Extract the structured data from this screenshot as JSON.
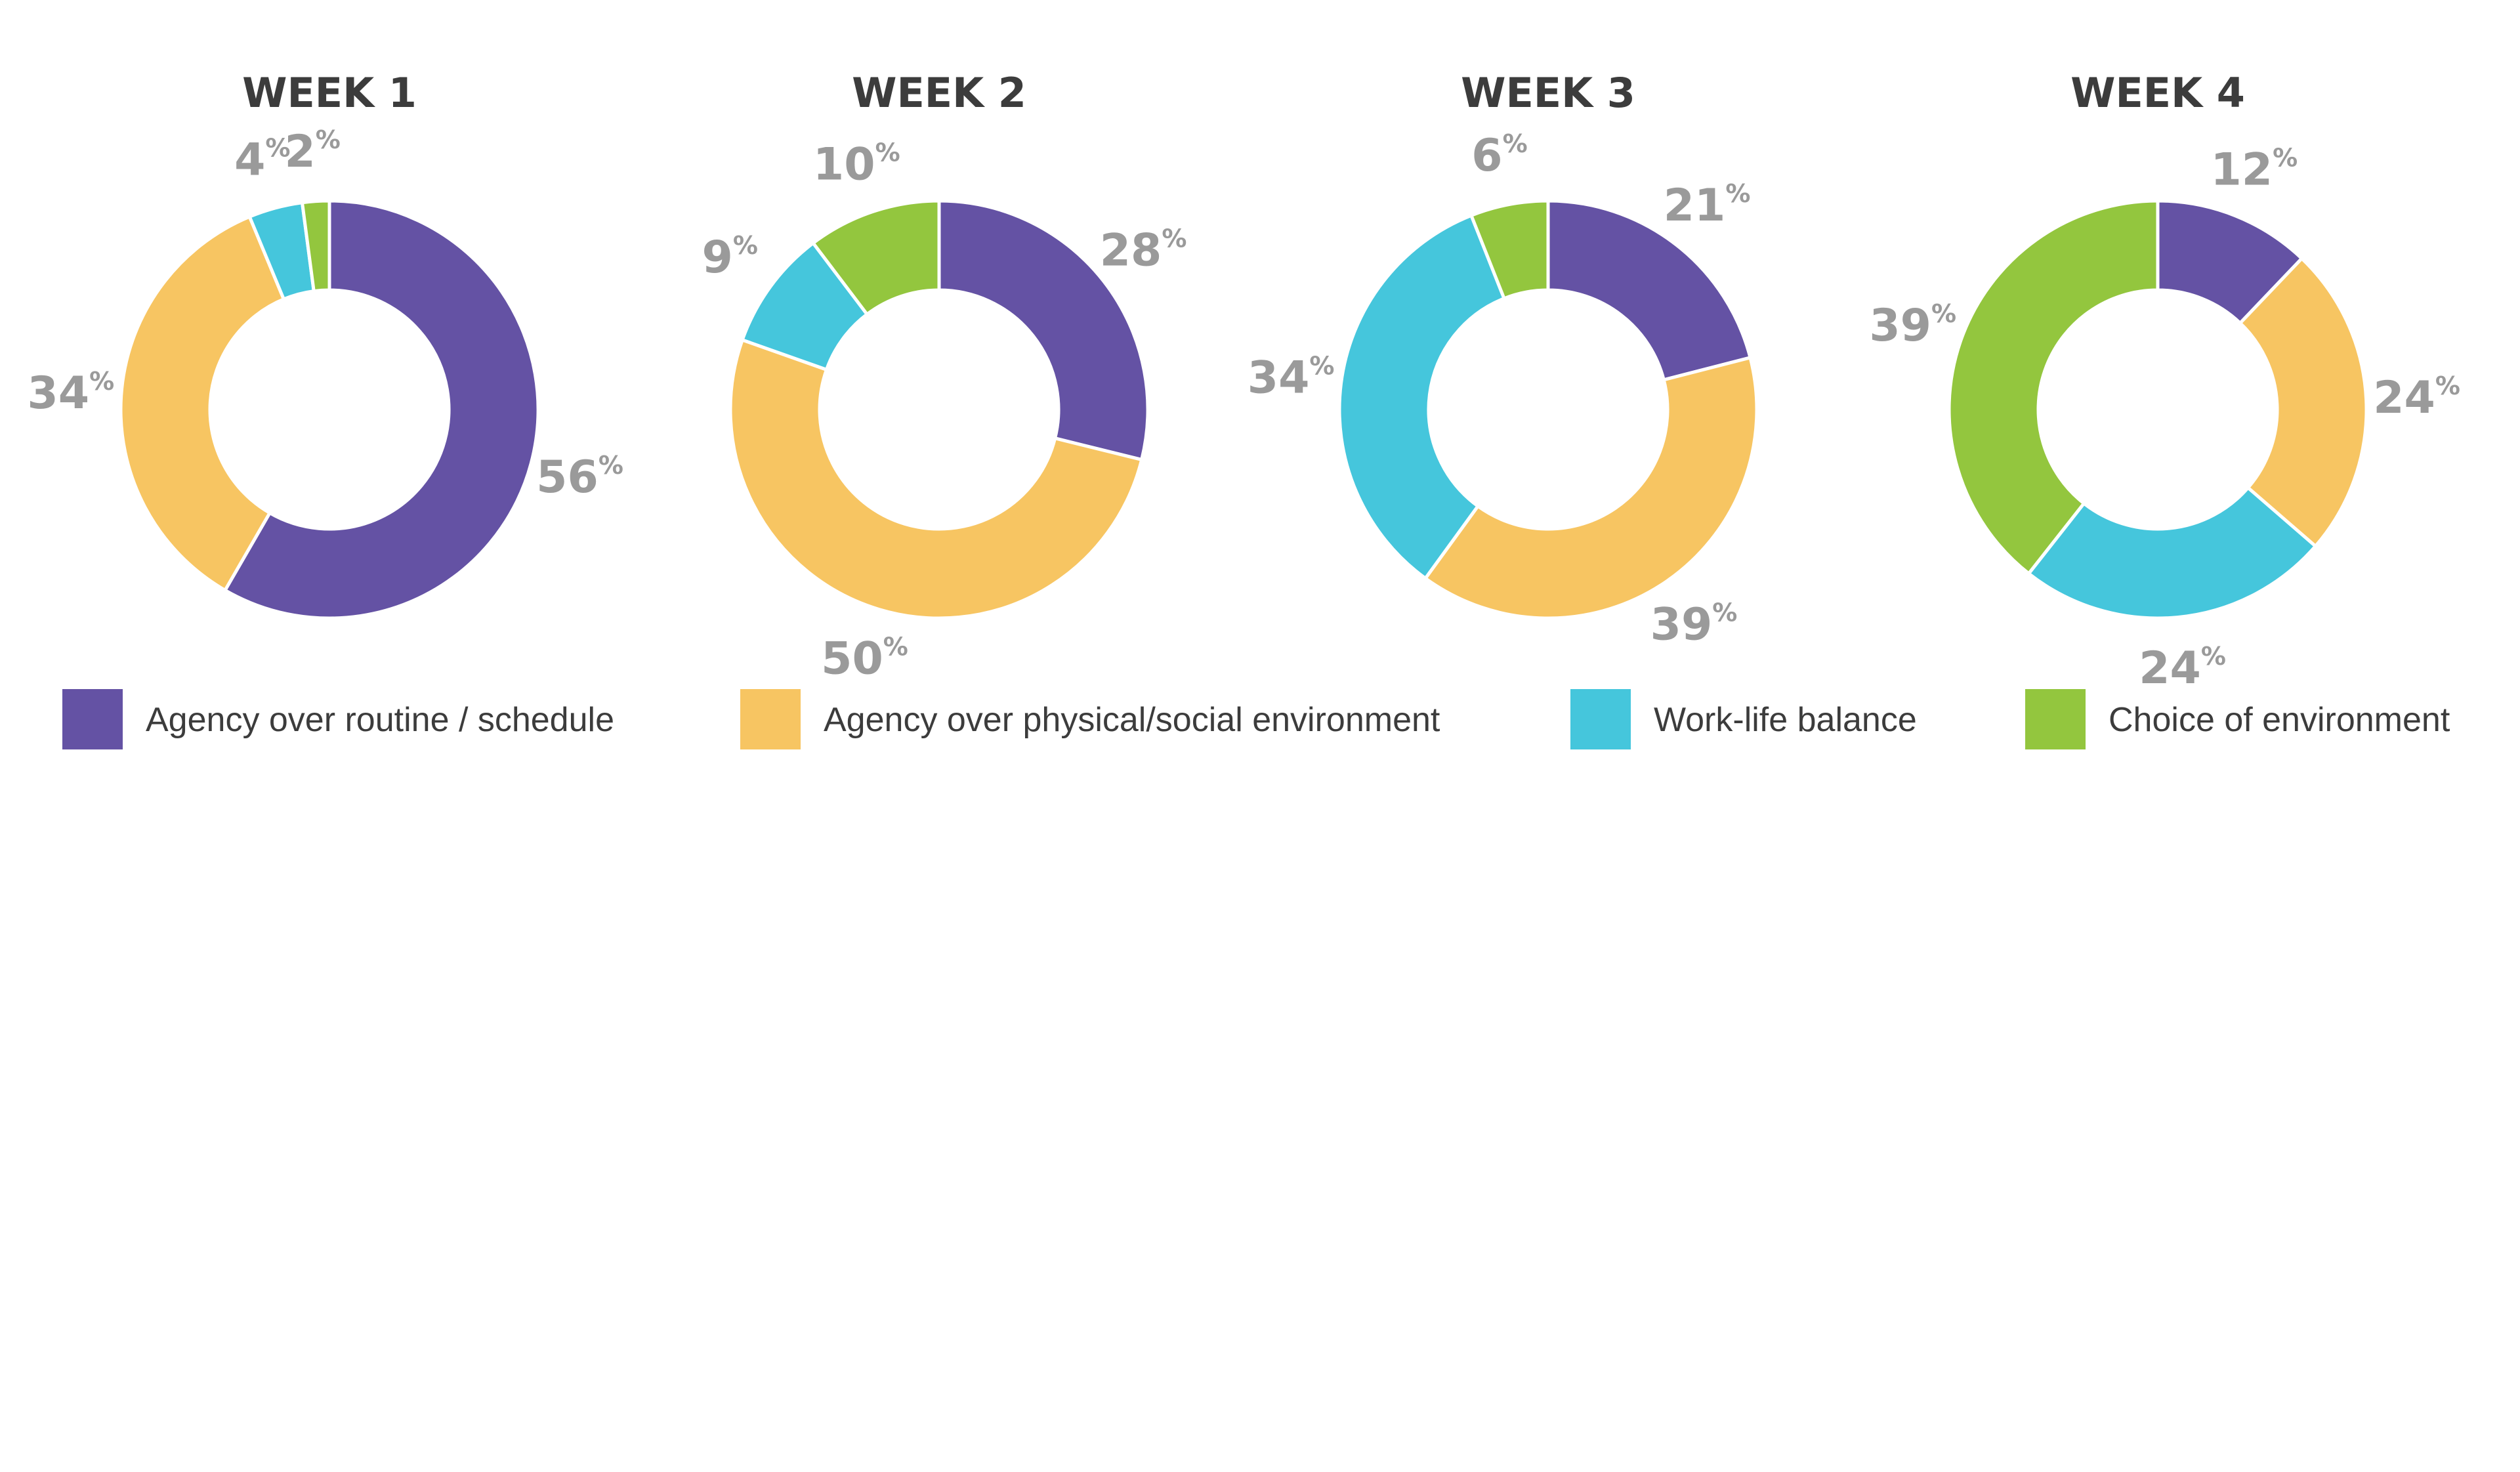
{
  "chart_data": {
    "type": "pie",
    "variant": "donut",
    "categories": [
      "Agency over routine / schedule",
      "Agency over physical/social environment",
      "Work-life balance",
      "Choice of environment"
    ],
    "colors": [
      "#6452a4",
      "#f7c562",
      "#45c6dc",
      "#93c63e"
    ],
    "unit_suffix": "%",
    "legend": {
      "placement": "bottom"
    },
    "charts": [
      {
        "title": "WEEK 1",
        "values": [
          56,
          34,
          4,
          2
        ]
      },
      {
        "title": "WEEK 2",
        "values": [
          28,
          50,
          9,
          10
        ]
      },
      {
        "title": "WEEK 3",
        "values": [
          21,
          39,
          34,
          6
        ]
      },
      {
        "title": "WEEK 4",
        "values": [
          12,
          24,
          24,
          39
        ]
      }
    ]
  }
}
